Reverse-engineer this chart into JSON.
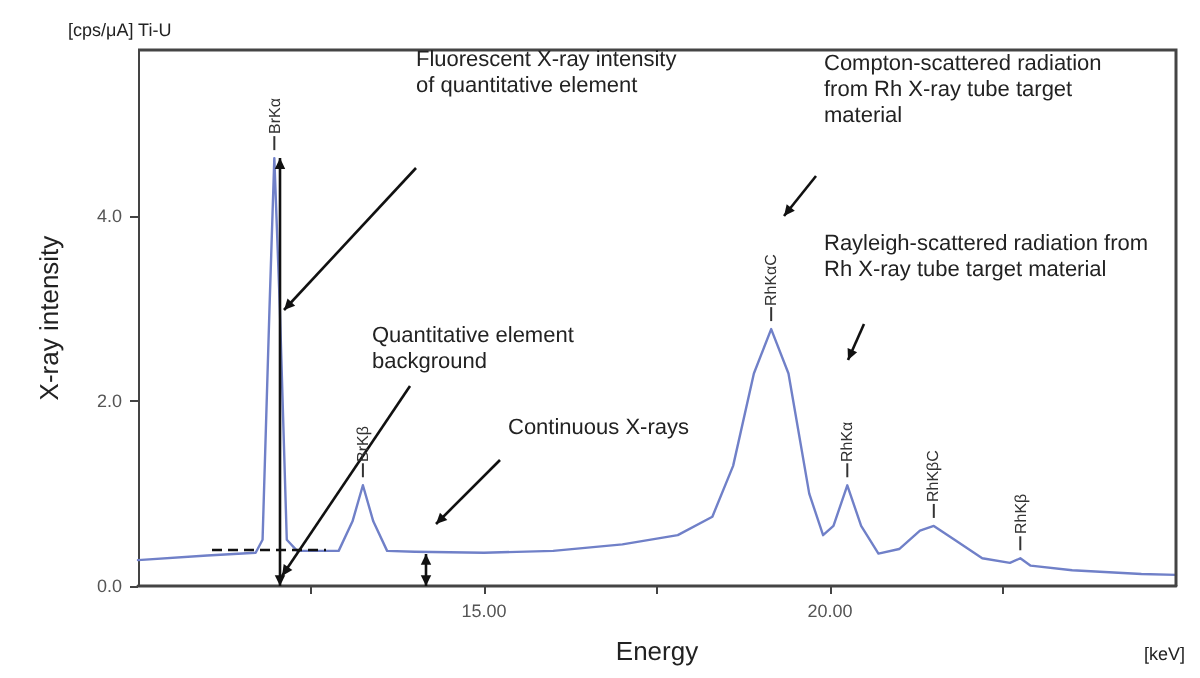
{
  "chart_data": {
    "type": "line",
    "xlabel": "Energy",
    "ylabel": "X-ray intensity",
    "x": [
      10,
      11,
      11.7,
      11.8,
      11.9,
      11.97,
      12.05,
      12.15,
      12.3,
      12.9,
      13.1,
      13.25,
      13.4,
      13.6,
      14,
      15,
      16,
      17,
      17.8,
      18.3,
      18.6,
      18.9,
      19.15,
      19.4,
      19.7,
      19.9,
      20.05,
      20.25,
      20.45,
      20.7,
      21,
      21.3,
      21.5,
      21.8,
      22.2,
      22.6,
      22.75,
      22.9,
      23.5,
      24.5,
      25
    ],
    "series": [
      {
        "color": "#7080c8",
        "values": [
          0.28,
          0.33,
          0.36,
          0.5,
          3.0,
          4.63,
          3.0,
          0.5,
          0.38,
          0.38,
          0.7,
          1.09,
          0.7,
          0.38,
          0.37,
          0.36,
          0.38,
          0.45,
          0.55,
          0.75,
          1.3,
          2.3,
          2.78,
          2.3,
          1.0,
          0.55,
          0.65,
          1.09,
          0.65,
          0.35,
          0.4,
          0.6,
          0.65,
          0.5,
          0.3,
          0.25,
          0.3,
          0.22,
          0.17,
          0.13,
          0.12
        ]
      }
    ],
    "xlim": [
      10,
      25
    ],
    "ylim": [
      0,
      5.8
    ],
    "xticks": [
      {
        "value": 12.5,
        "label": null
      },
      {
        "value": 15,
        "label": "15.00"
      },
      {
        "value": 17.5,
        "label": null
      },
      {
        "value": 20,
        "label": "20.00"
      },
      {
        "value": 22.5,
        "label": null
      }
    ],
    "yticks": [
      {
        "value": 0,
        "label": "0.0"
      },
      {
        "value": 2,
        "label": "2.0"
      },
      {
        "value": 4,
        "label": "4.0"
      }
    ],
    "grid": false,
    "marker": "none",
    "line_style": "solid",
    "annotations": [
      "[cps/μA] Ti-U",
      "[keV]",
      {
        "text": "BrKα",
        "x": 11.97,
        "y": 4.63
      },
      {
        "text": "BrKβ",
        "x": 13.25,
        "y": 1.09
      },
      {
        "text": "RhKαC",
        "x": 19.15,
        "y": 2.78
      },
      {
        "text": "RhKα",
        "x": 20.25,
        "y": 1.09
      },
      {
        "text": "RhKβC",
        "x": 21.5,
        "y": 0.65
      },
      {
        "text": "RhKβ",
        "x": 22.75,
        "y": 0.3
      },
      "Fluorescent X-ray intensity of quantitative element",
      "Quantitative element background",
      "Continuous X-rays",
      "Compton-scattered radiation from Rh X-ray tube target material",
      "Rayleigh-scattered radiation from Rh X-ray tube target material"
    ]
  }
}
